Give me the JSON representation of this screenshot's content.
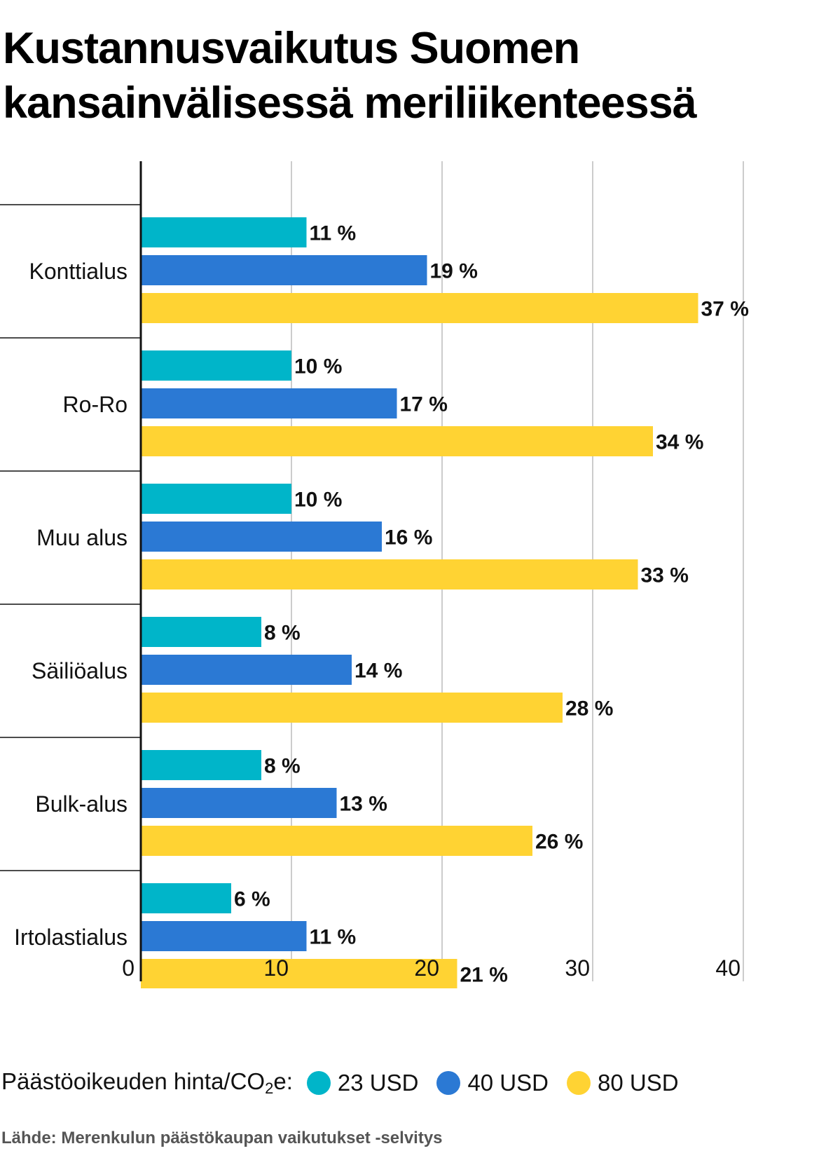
{
  "title_line1": "Kustannusvaikutus Suomen",
  "title_line2": "kansainvälisessä meriliikenteessä",
  "legend": {
    "label_pre": "Päästöoikeuden hinta/CO",
    "label_sub": "2",
    "label_post": "e:"
  },
  "source": "Lähde: Merenkulun päästökaupan vaikutukset -selvitys",
  "chart_data": {
    "type": "bar",
    "orientation": "horizontal",
    "title": "Kustannusvaikutus Suomen kansainvälisessä meriliikenteessä",
    "categories": [
      "Konttialus",
      "Ro-Ro",
      "Muu alus",
      "Säiliöalus",
      "Bulk-alus",
      "Irtolastialus"
    ],
    "series": [
      {
        "name": "23 USD",
        "color": "#00b5c9",
        "values": [
          11,
          10,
          10,
          8,
          8,
          6
        ]
      },
      {
        "name": "40 USD",
        "color": "#2b79d4",
        "values": [
          19,
          17,
          16,
          14,
          13,
          11
        ]
      },
      {
        "name": "80 USD",
        "color": "#ffd333",
        "values": [
          37,
          34,
          33,
          28,
          26,
          21
        ]
      }
    ],
    "value_suffix": " %",
    "xlim": [
      0,
      40
    ],
    "xticks": [
      0,
      10,
      20,
      30,
      40
    ],
    "grid": true,
    "legend_position": "bottom"
  }
}
